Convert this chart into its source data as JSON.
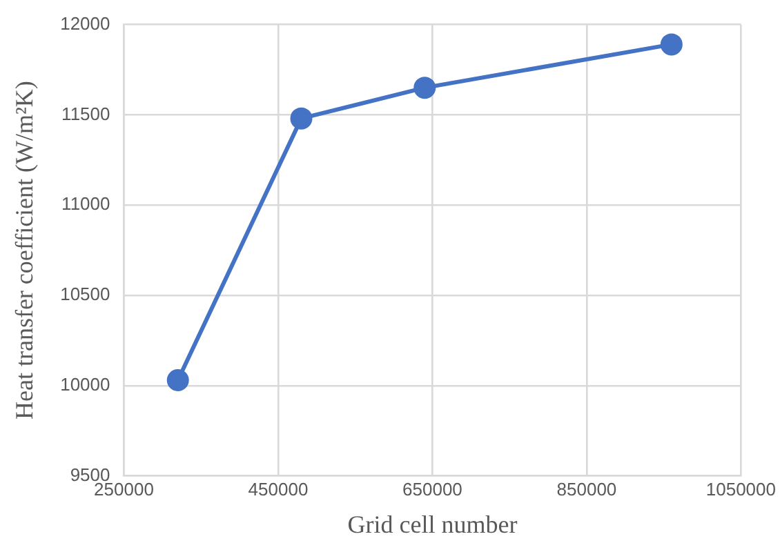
{
  "chart_data": {
    "type": "line",
    "xlabel": "Grid cell number",
    "ylabel": "Heat transfer coefficient (W/m²K)",
    "x": [
      320000,
      480000,
      640000,
      960000
    ],
    "series": [
      {
        "color": "#4472c4",
        "values": [
          10030,
          11480,
          11650,
          11890
        ]
      }
    ],
    "xlim": [
      250000,
      1050000
    ],
    "xticks": [
      250000,
      450000,
      650000,
      850000,
      1050000
    ],
    "ylim": [
      9500,
      12000
    ],
    "yticks": [
      9500,
      10000,
      10500,
      11000,
      11500,
      12000
    ],
    "grid": true,
    "legend": false,
    "marker": "circle",
    "line_style": "solid"
  }
}
